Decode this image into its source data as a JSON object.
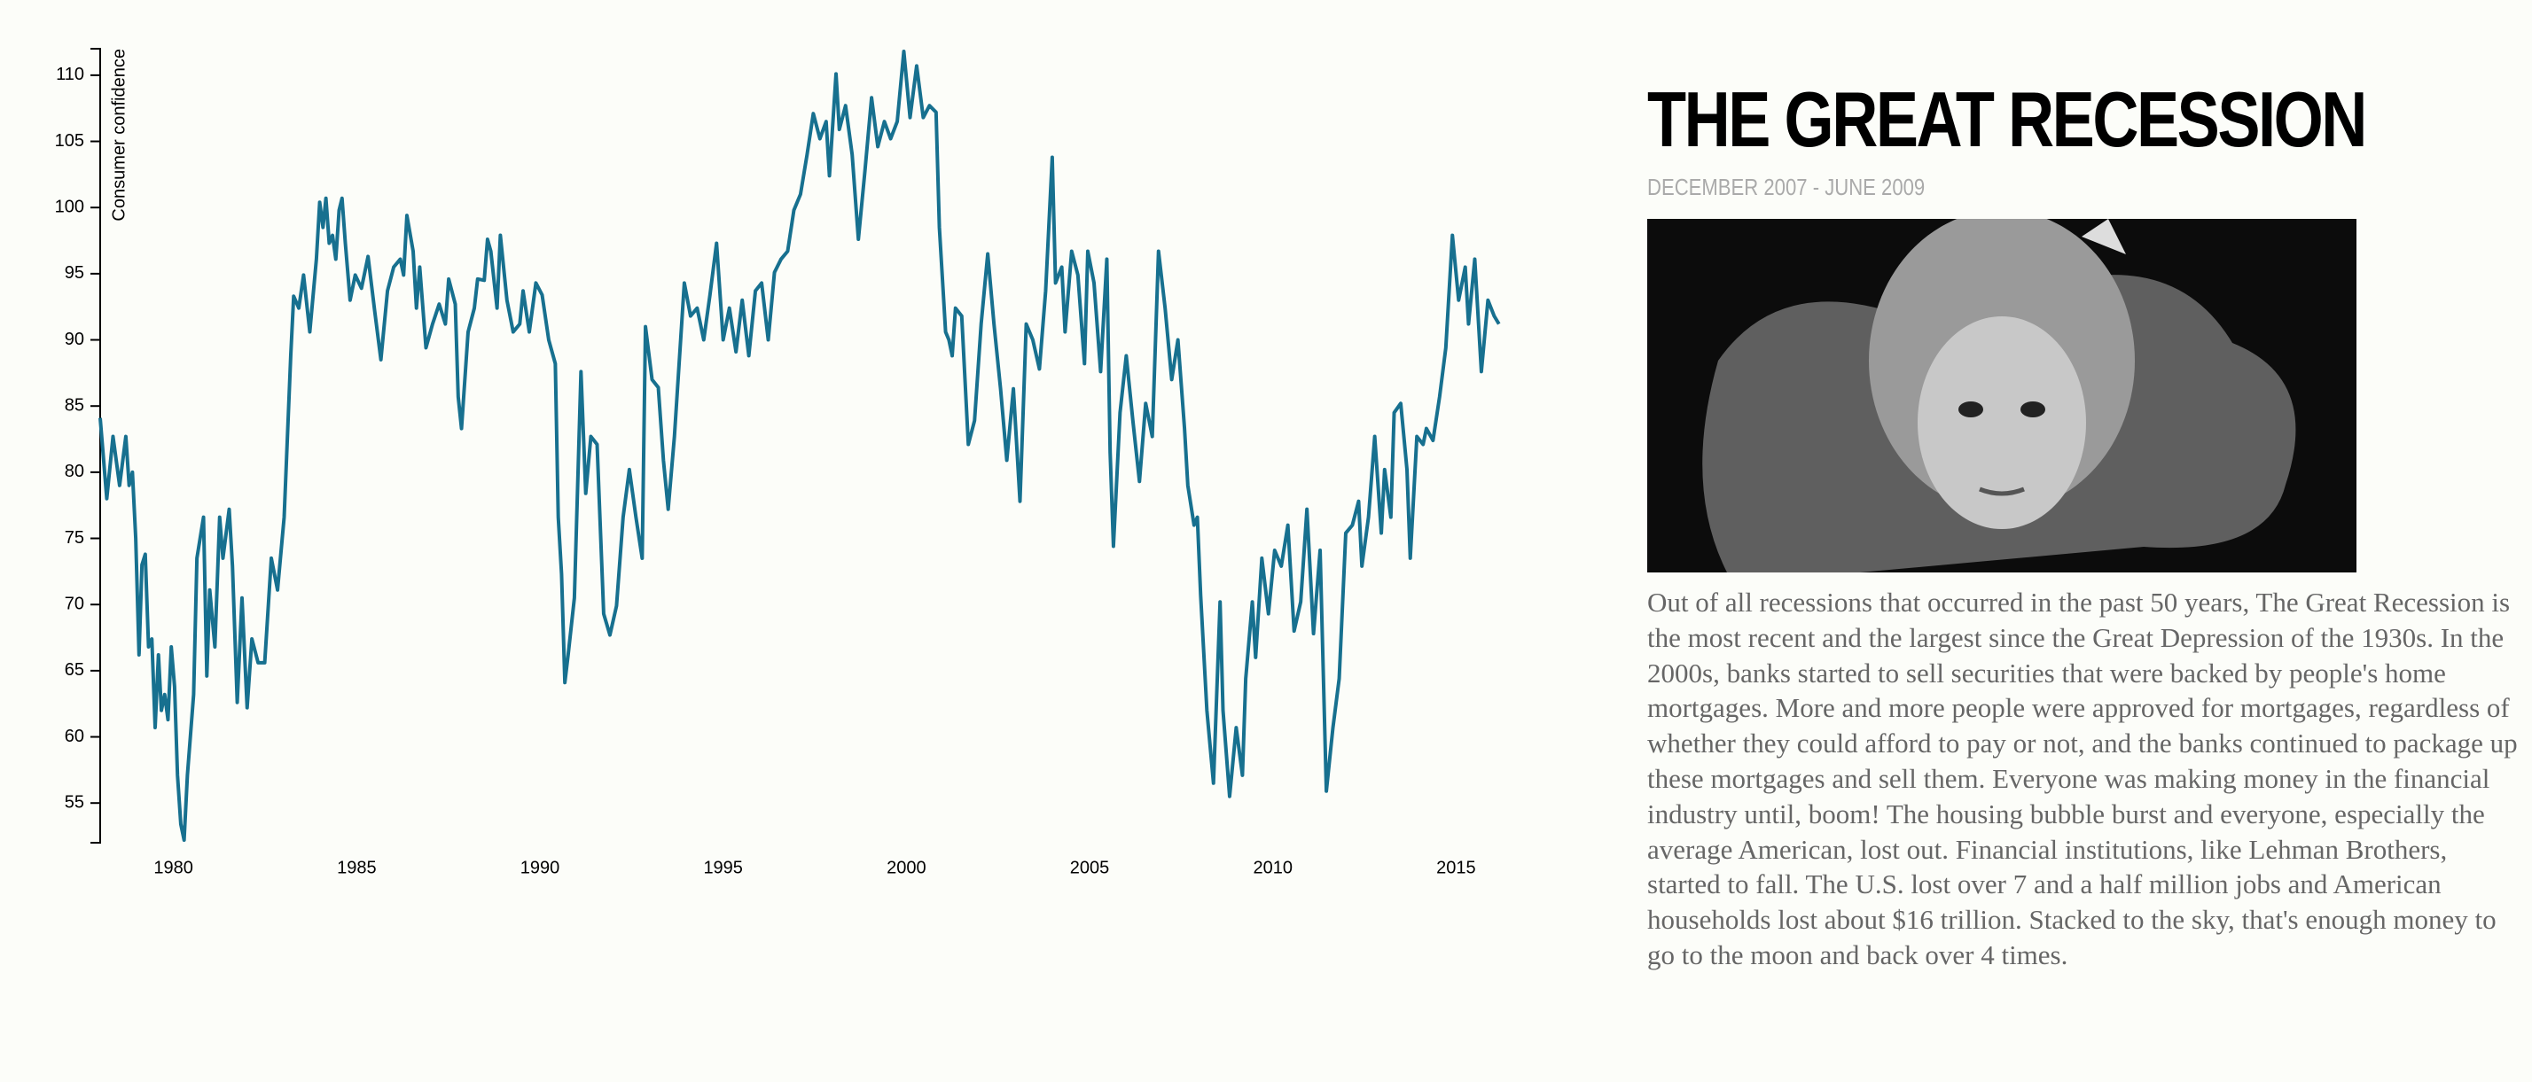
{
  "chart_data": {
    "type": "line",
    "y_label": "Consumer confidence",
    "color": "#17708f",
    "xlim": [
      1978,
      2016.2
    ],
    "xticks": [
      1980,
      1985,
      1990,
      1995,
      2000,
      2005,
      2010,
      2015
    ],
    "ylim": [
      52,
      112
    ],
    "yticks": [
      55,
      60,
      65,
      70,
      75,
      80,
      85,
      90,
      95,
      100,
      105,
      110
    ],
    "x": [
      1978.0,
      1978.18,
      1978.35,
      1978.53,
      1978.7,
      1978.79,
      1978.88,
      1978.97,
      1979.06,
      1979.14,
      1979.23,
      1979.32,
      1979.41,
      1979.5,
      1979.59,
      1979.67,
      1979.76,
      1979.85,
      1979.94,
      1980.03,
      1980.11,
      1980.2,
      1980.29,
      1980.38,
      1980.55,
      1980.64,
      1980.82,
      1980.91,
      1980.99,
      1981.13,
      1981.26,
      1981.35,
      1981.52,
      1981.61,
      1981.74,
      1981.87,
      1982.01,
      1982.14,
      1982.31,
      1982.49,
      1982.67,
      1982.84,
      1983.02,
      1983.2,
      1983.28,
      1983.42,
      1983.55,
      1983.72,
      1983.9,
      1983.99,
      1984.08,
      1984.16,
      1984.25,
      1984.34,
      1984.43,
      1984.52,
      1984.6,
      1984.69,
      1984.82,
      1984.96,
      1985.13,
      1985.31,
      1985.49,
      1985.66,
      1985.84,
      1986.01,
      1986.19,
      1986.28,
      1986.37,
      1986.54,
      1986.63,
      1986.72,
      1986.89,
      1987.07,
      1987.25,
      1987.42,
      1987.51,
      1987.69,
      1987.77,
      1987.86,
      1988.04,
      1988.21,
      1988.3,
      1988.48,
      1988.57,
      1988.66,
      1988.83,
      1988.92,
      1989.1,
      1989.27,
      1989.45,
      1989.54,
      1989.71,
      1989.89,
      1990.06,
      1990.24,
      1990.42,
      1990.5,
      1990.59,
      1990.68,
      1990.77,
      1990.94,
      1991.12,
      1991.25,
      1991.39,
      1991.56,
      1991.74,
      1991.91,
      1992.09,
      1992.27,
      1992.44,
      1992.62,
      1992.79,
      1992.88,
      1993.06,
      1993.23,
      1993.37,
      1993.5,
      1993.67,
      1993.94,
      1994.11,
      1994.29,
      1994.47,
      1994.64,
      1994.82,
      1995.0,
      1995.17,
      1995.35,
      1995.52,
      1995.7,
      1995.88,
      1996.05,
      1996.23,
      1996.4,
      1996.58,
      1996.76,
      1996.93,
      1997.11,
      1997.29,
      1997.46,
      1997.64,
      1997.81,
      1997.9,
      1998.08,
      1998.17,
      1998.34,
      1998.52,
      1998.69,
      1998.87,
      1999.05,
      1999.22,
      1999.4,
      1999.57,
      1999.75,
      1999.93,
      2000.1,
      2000.28,
      2000.46,
      2000.63,
      2000.81,
      2000.9,
      2001.07,
      2001.16,
      2001.25,
      2001.34,
      2001.51,
      2001.69,
      2001.86,
      2002.04,
      2002.22,
      2002.39,
      2002.57,
      2002.74,
      2002.92,
      2003.1,
      2003.27,
      2003.45,
      2003.63,
      2003.8,
      2003.98,
      2004.07,
      2004.24,
      2004.33,
      2004.51,
      2004.68,
      2004.86,
      2004.95,
      2005.12,
      2005.3,
      2005.47,
      2005.56,
      2005.65,
      2005.83,
      2006.0,
      2006.18,
      2006.36,
      2006.53,
      2006.71,
      2006.88,
      2007.06,
      2007.24,
      2007.41,
      2007.59,
      2007.68,
      2007.85,
      2007.94,
      2008.03,
      2008.2,
      2008.38,
      2008.56,
      2008.64,
      2008.82,
      2009.0,
      2009.17,
      2009.26,
      2009.44,
      2009.53,
      2009.7,
      2009.88,
      2010.05,
      2010.23,
      2010.41,
      2010.58,
      2010.76,
      2010.93,
      2011.11,
      2011.29,
      2011.46,
      2011.64,
      2011.81,
      2011.99,
      2012.17,
      2012.34,
      2012.43,
      2012.61,
      2012.78,
      2012.96,
      2013.05,
      2013.22,
      2013.31,
      2013.49,
      2013.66,
      2013.75,
      2013.93,
      2014.1,
      2014.19,
      2014.37,
      2014.55,
      2014.72,
      2014.9,
      2015.07,
      2015.25,
      2015.34,
      2015.51,
      2015.69,
      2015.87,
      2016.04,
      2016.17
    ],
    "values": [
      84.1,
      78.0,
      82.7,
      79.0,
      82.7,
      79.0,
      80.0,
      75.0,
      66.2,
      73.0,
      73.8,
      66.8,
      67.4,
      60.7,
      66.2,
      62.0,
      63.2,
      61.3,
      66.8,
      63.8,
      57.1,
      53.4,
      52.2,
      57.1,
      63.2,
      73.5,
      76.6,
      64.6,
      71.1,
      66.8,
      76.6,
      73.5,
      77.2,
      72.9,
      62.6,
      70.5,
      62.2,
      67.4,
      65.6,
      65.6,
      73.5,
      71.1,
      76.6,
      88.8,
      93.3,
      92.4,
      94.9,
      90.6,
      96.1,
      100.4,
      98.5,
      100.7,
      97.3,
      97.9,
      96.1,
      99.8,
      100.7,
      97.3,
      93.0,
      94.9,
      93.9,
      96.3,
      92.2,
      88.5,
      93.7,
      95.5,
      96.1,
      94.9,
      99.4,
      96.7,
      92.4,
      95.5,
      89.4,
      91.2,
      92.7,
      91.2,
      94.6,
      92.7,
      85.7,
      83.3,
      90.6,
      92.4,
      94.6,
      94.5,
      97.6,
      96.7,
      92.4,
      97.9,
      93.0,
      90.6,
      91.2,
      93.7,
      90.6,
      94.3,
      93.4,
      90.0,
      88.2,
      76.6,
      72.3,
      64.1,
      66.2,
      70.5,
      87.6,
      78.4,
      82.7,
      82.1,
      69.3,
      67.7,
      69.9,
      76.6,
      80.2,
      76.6,
      73.5,
      91.0,
      87.0,
      86.4,
      80.9,
      77.2,
      82.7,
      94.3,
      91.8,
      92.4,
      90.0,
      93.4,
      97.3,
      90.0,
      92.4,
      89.1,
      93.0,
      88.8,
      93.7,
      94.3,
      90.0,
      95.1,
      96.1,
      96.7,
      99.8,
      101.0,
      104.0,
      107.1,
      105.2,
      106.5,
      102.4,
      110.1,
      105.9,
      107.7,
      104.0,
      97.6,
      102.8,
      108.3,
      104.6,
      106.5,
      105.2,
      106.5,
      111.8,
      106.8,
      110.7,
      106.8,
      107.7,
      107.2,
      98.5,
      90.6,
      90.0,
      88.8,
      92.4,
      91.8,
      82.1,
      83.9,
      91.2,
      96.5,
      91.2,
      86.3,
      80.9,
      86.3,
      77.8,
      91.2,
      90.0,
      87.8,
      93.7,
      103.8,
      94.3,
      95.5,
      90.6,
      96.7,
      94.9,
      88.2,
      96.7,
      94.3,
      87.6,
      96.1,
      81.5,
      74.4,
      84.5,
      88.8,
      83.9,
      79.3,
      85.2,
      82.7,
      96.7,
      92.4,
      87.0,
      90.0,
      83.3,
      79.0,
      76.0,
      76.6,
      70.7,
      62.0,
      56.5,
      70.2,
      62.0,
      55.5,
      60.7,
      57.1,
      64.4,
      70.2,
      66.0,
      73.5,
      69.3,
      74.1,
      72.9,
      76.0,
      68.0,
      70.2,
      77.2,
      67.8,
      74.1,
      55.9,
      60.7,
      64.4,
      75.4,
      76.0,
      77.8,
      72.9,
      76.6,
      82.7,
      75.4,
      80.2,
      76.6,
      84.5,
      85.2,
      80.2,
      73.5,
      82.7,
      82.1,
      83.3,
      82.4,
      85.7,
      89.4,
      97.9,
      93.0,
      95.5,
      91.2,
      96.1,
      87.6,
      93.0,
      91.8,
      91.2
    ]
  },
  "article": {
    "title": "THE GREAT RECESSION",
    "subtitle": "DECEMBER 2007 - JUNE 2009",
    "body": "Out of all recessions that occurred in the past 50 years, The Great Recession is the most recent and the largest since the Great Depression of the 1930s. In the 2000s, banks started to sell securities that were backed by people's home mortgages. More and more people were approved for mortgages, regardless of whether they could afford to pay or not, and the banks continued to package up these mortgages and sell them. Everyone was making money in the financial industry until, boom! The housing bubble burst and everyone, especially the average American, lost out. Financial institutions, like Lehman Brothers, started to fall. The U.S. lost over 7 and a half million jobs and American households lost about $16 trillion. Stacked to the sky, that's enough money to go to the moon and back over 4 times."
  }
}
